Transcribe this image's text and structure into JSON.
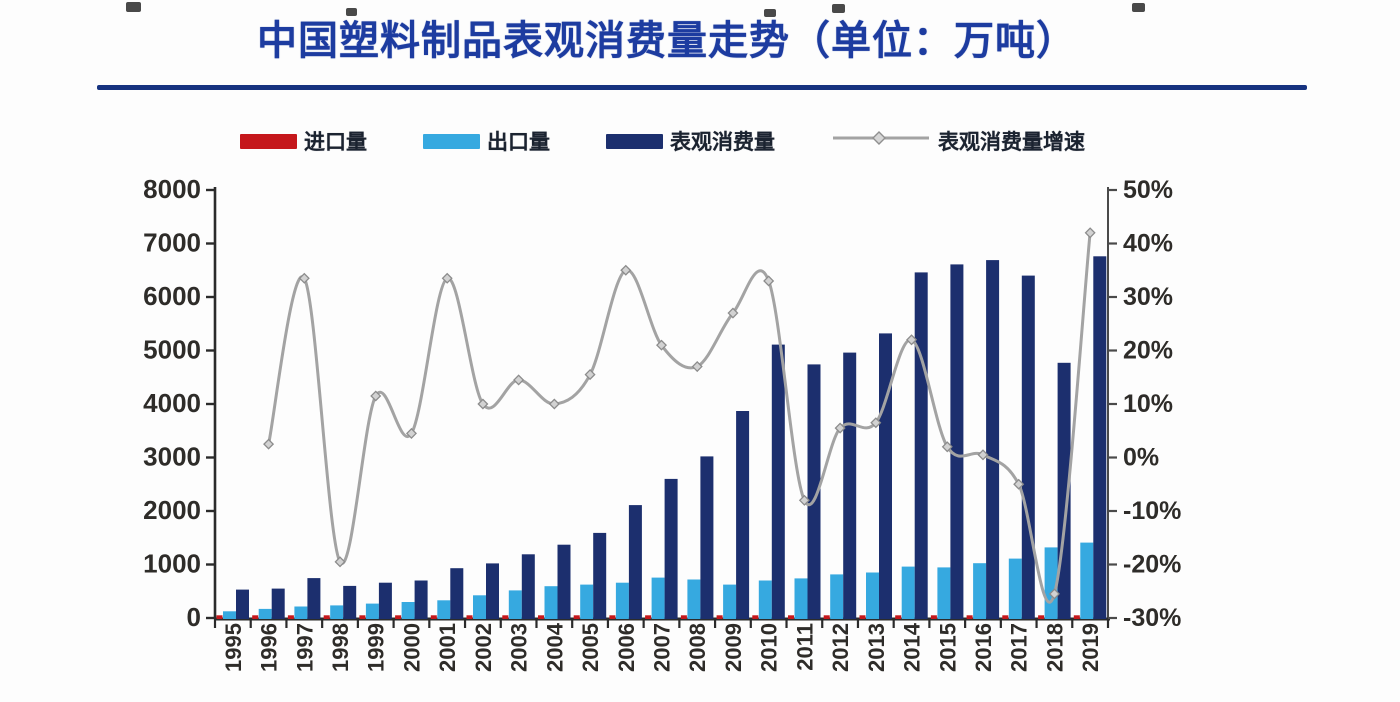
{
  "title": "中国塑料制品表观消费量走势（单位：万吨）",
  "chart_data": {
    "type": "combo-bar-line",
    "title": "中国塑料制品表观消费量走势（单位：万吨）",
    "unit": "万吨",
    "x": [
      "1995",
      "1996",
      "1997",
      "1998",
      "1999",
      "2000",
      "2001",
      "2002",
      "2003",
      "2004",
      "2005",
      "2006",
      "2007",
      "2008",
      "2009",
      "2010",
      "2011",
      "2012",
      "2013",
      "2014",
      "2015",
      "2016",
      "2017",
      "2018",
      "2019"
    ],
    "series": [
      {
        "name": "进口量",
        "type": "bar",
        "axis": "left",
        "color": "#c5171b",
        "values": [
          50,
          50,
          50,
          50,
          50,
          50,
          50,
          50,
          50,
          50,
          50,
          50,
          50,
          50,
          50,
          50,
          50,
          50,
          50,
          50,
          50,
          50,
          50,
          50,
          50
        ]
      },
      {
        "name": "出口量",
        "type": "bar",
        "axis": "left",
        "color": "#36a9e0",
        "values": [
          125,
          170,
          215,
          235,
          270,
          300,
          330,
          425,
          515,
          595,
          625,
          660,
          755,
          720,
          625,
          700,
          740,
          815,
          850,
          960,
          945,
          1025,
          1110,
          1320,
          1410
        ]
      },
      {
        "name": "表观消费量",
        "type": "bar",
        "axis": "left",
        "color": "#1c2f6e",
        "values": [
          530,
          550,
          745,
          600,
          660,
          700,
          930,
          1020,
          1190,
          1370,
          1590,
          2110,
          2600,
          3020,
          3870,
          5110,
          4740,
          4960,
          5320,
          6460,
          6610,
          6690,
          6400,
          4770,
          6760
        ]
      },
      {
        "name": "表观消费量增速",
        "type": "line",
        "axis": "right",
        "unit": "%",
        "color": "#a3a3a3",
        "marker": "diamond",
        "values": [
          null,
          2.5,
          33.5,
          -19.5,
          11.5,
          4.5,
          33.5,
          10,
          14.5,
          10,
          15.5,
          35,
          21,
          17,
          27,
          33,
          -8,
          5.5,
          6.5,
          22,
          2,
          0.5,
          -5,
          -25.5,
          42
        ]
      }
    ],
    "left_axis": {
      "min": 0,
      "max": 8000,
      "step": 1000,
      "tick_labels": [
        "0",
        "1000",
        "2000",
        "3000",
        "4000",
        "5000",
        "6000",
        "7000",
        "8000"
      ]
    },
    "right_axis": {
      "min": -30,
      "max": 50,
      "step": 10,
      "tick_labels": [
        "-30%",
        "-20%",
        "-10%",
        "0%",
        "10%",
        "20%",
        "30%",
        "40%",
        "50%"
      ]
    },
    "grid": false,
    "legend_position": "top"
  }
}
